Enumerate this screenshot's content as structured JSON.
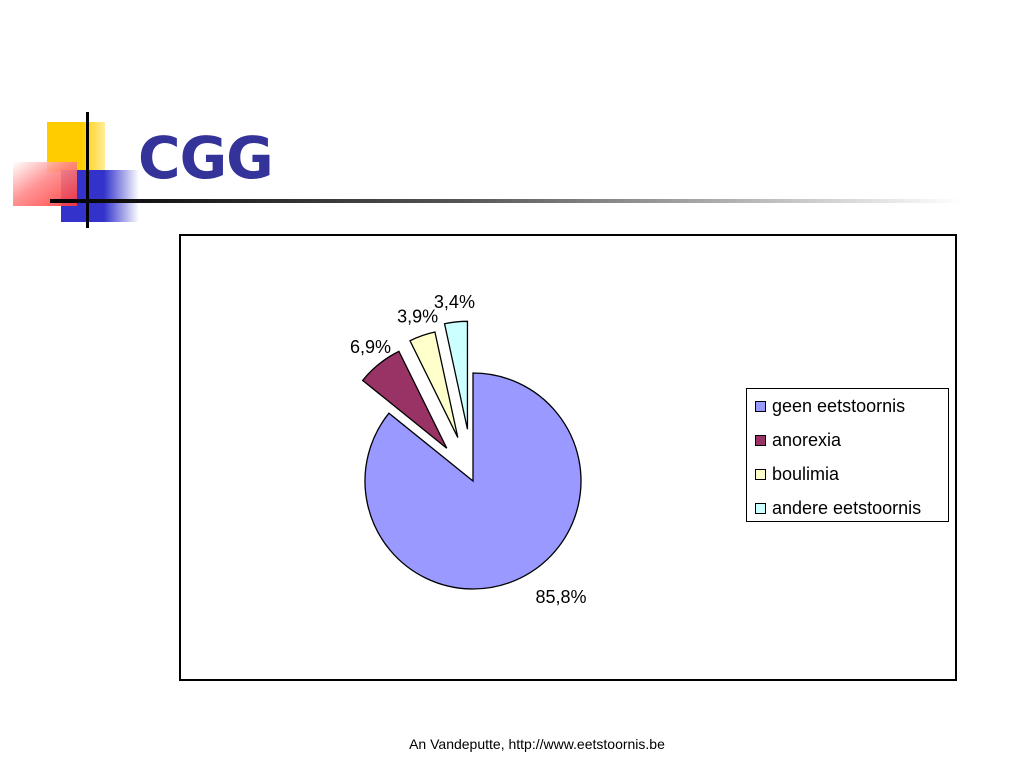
{
  "slide": {
    "title": "CGG",
    "footer": "An Vandeputte, http://www.eetstoornis.be"
  },
  "colors": {
    "title": "#333399",
    "deco_yellow": "#ffcc00",
    "deco_blue": "#3333cc",
    "deco_red": "#ff3333"
  },
  "chart_data": {
    "type": "pie",
    "title": "",
    "exploded": true,
    "legend_position": "right",
    "series": [
      {
        "categories": [
          "geen eetstoornis",
          "anorexia",
          "boulimia",
          "andere eetstoornis"
        ],
        "values": [
          85.8,
          6.9,
          3.9,
          3.4
        ],
        "labels": [
          "85,8%",
          "6,9%",
          "3,9%",
          "3,4%"
        ],
        "colors": [
          "#9999ff",
          "#993366",
          "#ffffcc",
          "#ccffff"
        ]
      }
    ]
  }
}
